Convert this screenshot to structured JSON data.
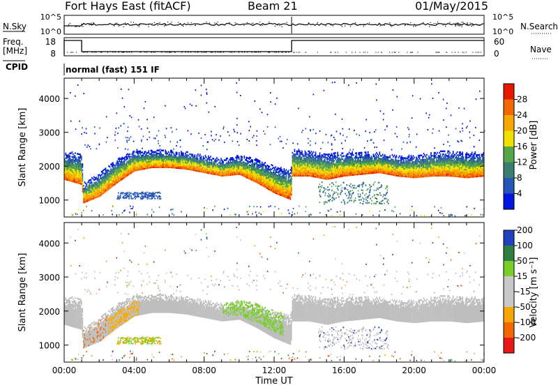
{
  "header": {
    "station": "Fort Hays East (fitACF)",
    "beam": "Beam 21",
    "date": "01/May/2015"
  },
  "info_panels": {
    "nsky_label": "N.Sky",
    "nsky_ticks": [
      "10^5",
      "10^0"
    ],
    "nsearch_label": "N.Search",
    "nsearch_ticks": [
      "10^5",
      "10^0"
    ],
    "freq_label": "Freq.",
    "freq_unit": "[MHz]",
    "freq_ticks": [
      "18",
      "8"
    ],
    "nave_label": "Nave",
    "nave_ticks": [
      "60",
      "0"
    ],
    "cpid_label": "CPID",
    "cpid_value": "normal (fast) 151 IF"
  },
  "colors": {
    "power_scale": [
      "#0016e0",
      "#2656b5",
      "#3d7c70",
      "#55a84a",
      "#f0e000",
      "#f7a800",
      "#f26800",
      "#e81800"
    ],
    "velocity_scale": [
      "#e81818",
      "#f26800",
      "#f7a800",
      "#c8c8c8",
      "#c8c8c8",
      "#79cf29",
      "#2e8040",
      "#2040c0"
    ],
    "gray": "#bebebe"
  },
  "chart_data": [
    {
      "type": "heatmap",
      "name": "Power",
      "ylabel": "Slant Range [km]",
      "ylim": [
        500,
        4600
      ],
      "yticks": [
        1000,
        2000,
        3000,
        4000
      ],
      "xlim": [
        0,
        24
      ],
      "colorbar": {
        "label": "Power [dB]",
        "ticks": [
          "4",
          "8",
          "12",
          "16",
          "20",
          "24",
          "28"
        ],
        "range": [
          0,
          30
        ]
      },
      "band_profile": {
        "hours": [
          0,
          1,
          1.05,
          2,
          3,
          4,
          5,
          6,
          7,
          8,
          9,
          10,
          11,
          12,
          12.95,
          13,
          14,
          15,
          16,
          17,
          18,
          19,
          20,
          21,
          22,
          23,
          24
        ],
        "lower_edge_km": [
          1600,
          1450,
          900,
          1100,
          1500,
          1850,
          1950,
          1950,
          1900,
          1800,
          1700,
          1750,
          1500,
          1200,
          1000,
          1700,
          1700,
          1600,
          1700,
          1750,
          1800,
          1700,
          1650,
          1700,
          1700,
          1650,
          1700
        ],
        "upper_edge_km": [
          2400,
          2400,
          1500,
          1800,
          2200,
          2450,
          2450,
          2450,
          2400,
          2300,
          2200,
          2300,
          2200,
          2000,
          1900,
          2500,
          2450,
          2350,
          2400,
          2400,
          2400,
          2300,
          2300,
          2400,
          2450,
          2400,
          2400
        ]
      }
    },
    {
      "type": "heatmap",
      "name": "Velocity",
      "ylabel": "Slant Range [km]",
      "ylim": [
        500,
        4600
      ],
      "yticks": [
        1000,
        2000,
        3000,
        4000
      ],
      "xlim": [
        0,
        24
      ],
      "xlabel": "Time UT",
      "xticks": [
        "00:00",
        "04:00",
        "08:00",
        "12:00",
        "16:00",
        "20:00",
        "00:00"
      ],
      "colorbar": {
        "label": "Velocity [m s⁻¹]",
        "ticks": [
          "-200",
          "-100",
          "-50",
          "-15",
          "15",
          "50",
          "100",
          "200"
        ],
        "range": [
          -250,
          250
        ]
      }
    }
  ]
}
